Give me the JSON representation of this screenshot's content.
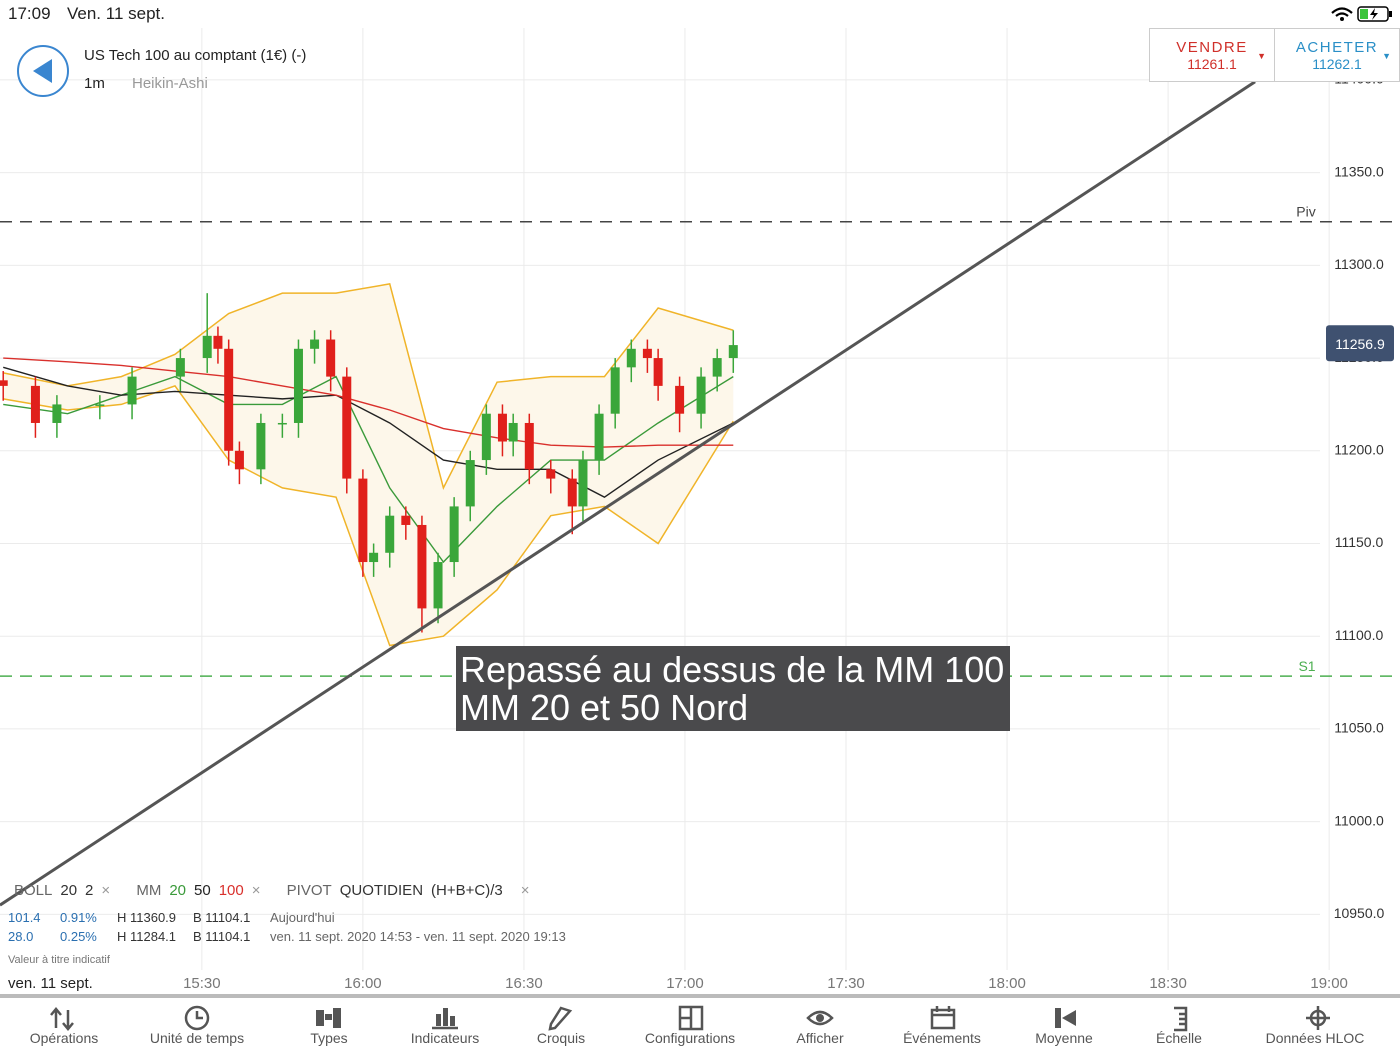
{
  "status_bar": {
    "time": "17:09",
    "date": "Ven. 11 sept."
  },
  "header": {
    "title": "US Tech 100 au comptant (1€) (-)",
    "timeframe": "1m",
    "chart_style": "Heikin-Ashi"
  },
  "quote": {
    "sell": {
      "label": "VENDRE",
      "price": "11261.1"
    },
    "buy": {
      "label": "ACHETER",
      "price": "11262.1"
    }
  },
  "chart_data": {
    "type": "candlestick",
    "xlim": [
      892.4,
      1153.2
    ],
    "ylim": [
      10920,
      11428
    ],
    "xticks": [
      {
        "value": 930,
        "label": "15:30"
      },
      {
        "value": 960,
        "label": "16:00"
      },
      {
        "value": 990,
        "label": "16:30"
      },
      {
        "value": 1020,
        "label": "17:00"
      },
      {
        "value": 1050,
        "label": "17:30"
      },
      {
        "value": 1080,
        "label": "18:00"
      },
      {
        "value": 1110,
        "label": "18:30"
      },
      {
        "value": 1140,
        "label": "19:00"
      }
    ],
    "yticks": [
      {
        "value": 11400,
        "label": "11400.0"
      },
      {
        "value": 11350,
        "label": "11350.0"
      },
      {
        "value": 11300,
        "label": "11300.0"
      },
      {
        "value": 11250,
        "label": "11250.0"
      },
      {
        "value": 11200,
        "label": "11200.0"
      },
      {
        "value": 11150,
        "label": "11150.0"
      },
      {
        "value": 11100,
        "label": "11100.0"
      },
      {
        "value": 11050,
        "label": "11050.0"
      },
      {
        "value": 11000,
        "label": "11000.0"
      },
      {
        "value": 10950,
        "label": "10950.0"
      }
    ],
    "grid": true,
    "up_color": "#3aa63a",
    "down_color": "#e0201b",
    "candles": {
      "x": [
        893,
        899,
        903,
        911,
        917,
        926,
        931,
        933,
        935,
        937,
        941,
        945,
        948,
        951,
        954,
        957,
        960,
        962,
        965,
        968,
        971,
        974,
        977,
        980,
        983,
        986,
        988,
        991,
        995,
        999,
        1001,
        1004,
        1007,
        1010,
        1013,
        1015,
        1019,
        1023,
        1026,
        1029
      ],
      "open": [
        11238,
        11235,
        11215,
        11225,
        11225,
        11240,
        11250,
        11262,
        11255,
        11200,
        11190,
        11215,
        11215,
        11255,
        11260,
        11240,
        11185,
        11140,
        11145,
        11165,
        11160,
        11115,
        11140,
        11170,
        11195,
        11220,
        11205,
        11215,
        11190,
        11185,
        11170,
        11195,
        11220,
        11245,
        11255,
        11250,
        11235,
        11220,
        11240,
        11250
      ],
      "high": [
        11243,
        11240,
        11230,
        11230,
        11245,
        11255,
        11285,
        11267,
        11260,
        11205,
        11220,
        11220,
        11260,
        11265,
        11265,
        11245,
        11190,
        11150,
        11170,
        11170,
        11165,
        11145,
        11175,
        11200,
        11225,
        11225,
        11220,
        11220,
        11195,
        11190,
        11200,
        11225,
        11250,
        11260,
        11260,
        11255,
        11240,
        11245,
        11255,
        11265
      ],
      "low": [
        11227,
        11207,
        11207,
        11217,
        11217,
        11232,
        11242,
        11247,
        11192,
        11182,
        11182,
        11207,
        11207,
        11247,
        11232,
        11177,
        11132,
        11132,
        11137,
        11152,
        11102,
        11107,
        11132,
        11162,
        11187,
        11197,
        11197,
        11182,
        11177,
        11155,
        11162,
        11187,
        11212,
        11237,
        11242,
        11227,
        11210,
        11212,
        11232,
        11242
      ],
      "close": [
        11235,
        11215,
        11225,
        11225,
        11240,
        11250,
        11262,
        11255,
        11200,
        11190,
        11215,
        11215,
        11255,
        11260,
        11240,
        11185,
        11140,
        11145,
        11165,
        11160,
        11115,
        11140,
        11170,
        11195,
        11220,
        11205,
        11215,
        11190,
        11185,
        11170,
        11195,
        11220,
        11245,
        11255,
        11250,
        11235,
        11220,
        11240,
        11250,
        11257
      ]
    },
    "overlay_x": [
      893,
      905,
      915,
      925,
      935,
      945,
      955,
      965,
      975,
      985,
      995,
      1005,
      1015,
      1029
    ],
    "bollinger": {
      "color": "#f0b429",
      "fill": "#fdf7ea",
      "upper": [
        11242,
        11235,
        11240,
        11252,
        11274,
        11285,
        11285,
        11290,
        11180,
        11237,
        11240,
        11240,
        11277,
        11265
      ],
      "lower": [
        11228,
        11222,
        11225,
        11235,
        11195,
        11180,
        11175,
        11095,
        11100,
        11125,
        11165,
        11170,
        11150,
        11216
      ]
    },
    "series": [
      {
        "name": "MM 20",
        "color": "#3a9a3a",
        "values": [
          11225,
          11220,
          11230,
          11240,
          11225,
          11225,
          11240,
          11180,
          11140,
          11170,
          11195,
          11195,
          11215,
          11240
        ]
      },
      {
        "name": "MM 50",
        "color": "#222222",
        "values": [
          11245,
          11235,
          11230,
          11232,
          11230,
          11228,
          11230,
          11215,
          11195,
          11190,
          11190,
          11175,
          11195,
          11215
        ]
      },
      {
        "name": "MM 100",
        "color": "#d9302c",
        "values": [
          11250,
          11248,
          11246,
          11243,
          11240,
          11235,
          11230,
          11222,
          11212,
          11207,
          11203,
          11202,
          11203,
          11203
        ]
      }
    ],
    "trendline": {
      "x": [
        892.4,
        1126.2
      ],
      "y": [
        10955,
        11399
      ]
    },
    "pivot": {
      "label": "Piv",
      "value": 11323.5
    },
    "s1": {
      "label": "S1",
      "value": 11078.5
    },
    "last_price": {
      "value": 11256.9,
      "label": "11256.9"
    },
    "annotation": [
      "Repassé au dessus de la MM 100",
      "MM 20 et 50 Nord"
    ],
    "date_label": "ven. 11 sept."
  },
  "legend": {
    "boll": [
      "BOLL",
      "20",
      "2"
    ],
    "mm": [
      "MM",
      "20",
      "50",
      "100"
    ],
    "pivot": [
      "PIVOT",
      "QUOTIDIEN",
      "(H+B+C)/3"
    ],
    "close": "×"
  },
  "info": {
    "rows": [
      [
        "101.4",
        "0.91%",
        "H 11360.9",
        "B 11104.1",
        "Aujourd'hui"
      ],
      [
        "28.0",
        "0.25%",
        "H 11284.1",
        "B 11104.1",
        "ven. 11 sept. 2020 14:53 - ven. 11 sept. 2020 19:13"
      ]
    ],
    "disclaimer": "Valeur à titre indicatif"
  },
  "toolbar": [
    "Opérations",
    "Unité de temps",
    "Types",
    "Indicateurs",
    "Croquis",
    "Configurations",
    "Afficher",
    "Événements",
    "Moyenne",
    "Échelle",
    "Données HLOC"
  ]
}
